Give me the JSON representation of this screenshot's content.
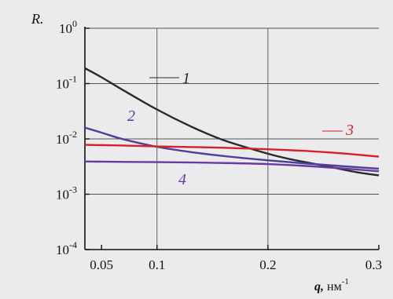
{
  "chart_data": {
    "type": "line",
    "ylabel": "R.",
    "xlabel": "q, нм",
    "xlabel_sup": "-1",
    "x_scale": "linear",
    "y_scale": "log",
    "xlim": [
      0.035,
      0.3
    ],
    "ylim": [
      0.0001,
      1
    ],
    "grid": true,
    "x_ticks": [
      {
        "value": 0.05,
        "label": "0.05"
      },
      {
        "value": 0.1,
        "label": "0.1"
      },
      {
        "value": 0.2,
        "label": "0.2"
      },
      {
        "value": 0.3,
        "label": "0.3"
      }
    ],
    "x_grid": [
      0.1,
      0.2
    ],
    "y_ticks": [
      {
        "value": 1,
        "base": "10",
        "exp": "0"
      },
      {
        "value": 0.1,
        "base": "10",
        "exp": "-1"
      },
      {
        "value": 0.01,
        "base": "10",
        "exp": "-2"
      },
      {
        "value": 0.001,
        "base": "10",
        "exp": "-3"
      },
      {
        "value": 0.0001,
        "base": "10",
        "exp": "-4"
      }
    ],
    "series": [
      {
        "name": "1",
        "color": "#2a2a2a",
        "x": [
          0.035,
          0.05,
          0.07,
          0.1,
          0.13,
          0.16,
          0.2,
          0.22,
          0.25,
          0.28,
          0.3
        ],
        "y": [
          0.19,
          0.13,
          0.075,
          0.034,
          0.017,
          0.0095,
          0.0054,
          0.0043,
          0.0033,
          0.0025,
          0.0022
        ]
      },
      {
        "name": "2",
        "color": "#4f3f9a",
        "x": [
          0.035,
          0.05,
          0.07,
          0.1,
          0.13,
          0.16,
          0.2,
          0.25,
          0.3
        ],
        "y": [
          0.016,
          0.013,
          0.0098,
          0.0072,
          0.0058,
          0.0049,
          0.0041,
          0.0034,
          0.0029
        ]
      },
      {
        "name": "3",
        "color": "#d81f26",
        "x": [
          0.035,
          0.07,
          0.1,
          0.15,
          0.2,
          0.25,
          0.3
        ],
        "y": [
          0.0078,
          0.0076,
          0.0073,
          0.007,
          0.0065,
          0.0058,
          0.0048
        ]
      },
      {
        "name": "4",
        "color": "#6a3aa0",
        "x": [
          0.035,
          0.1,
          0.15,
          0.2,
          0.25,
          0.3
        ],
        "y": [
          0.0039,
          0.0038,
          0.0037,
          0.0035,
          0.0031,
          0.0026
        ]
      }
    ]
  }
}
